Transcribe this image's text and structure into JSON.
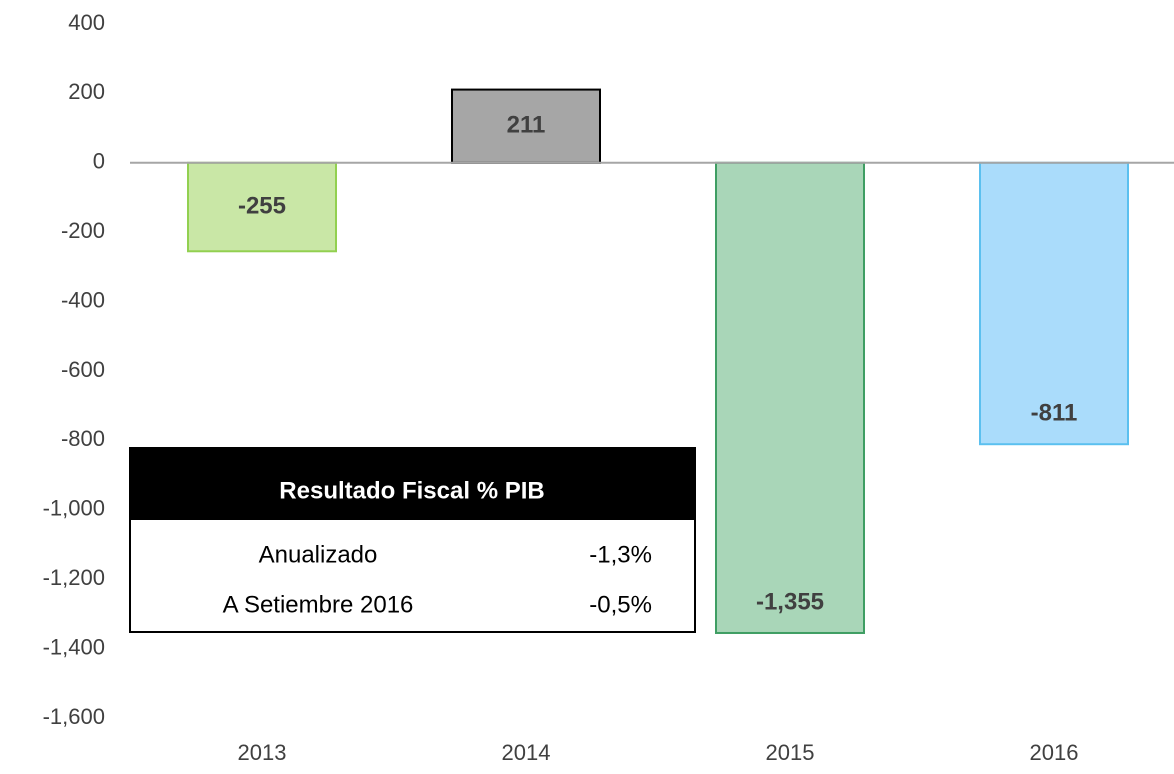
{
  "chart_data": {
    "type": "bar",
    "categories": [
      "2013",
      "2014",
      "2015",
      "2016"
    ],
    "values": [
      -255,
      211,
      -1355,
      -811
    ],
    "value_labels": [
      "-255",
      "211",
      "-1,355",
      "-811"
    ],
    "colors": [
      "#c9e7a6",
      "#a6a6a6",
      "#a9d6b8",
      "#aadcfb"
    ],
    "edge_colors": [
      "#92d050",
      "#000000",
      "#3f9e63",
      "#5bc0ef"
    ],
    "ylim": [
      -1600,
      400
    ],
    "yticks": [
      400,
      200,
      0,
      -200,
      -400,
      -600,
      -800,
      {
        "value": -1000,
        "label": "-1,000"
      },
      {
        "value": -1200,
        "label": "-1,200"
      },
      {
        "value": -1400,
        "label": "-1,400"
      },
      {
        "value": -1600,
        "label": "-1,600"
      }
    ],
    "grid": false,
    "inset_table": {
      "title": "Resultado Fiscal  % PIB",
      "rows": [
        [
          "Anualizado",
          "-1,3%"
        ],
        [
          "A Setiembre 2016",
          "-0,5%"
        ]
      ]
    }
  }
}
